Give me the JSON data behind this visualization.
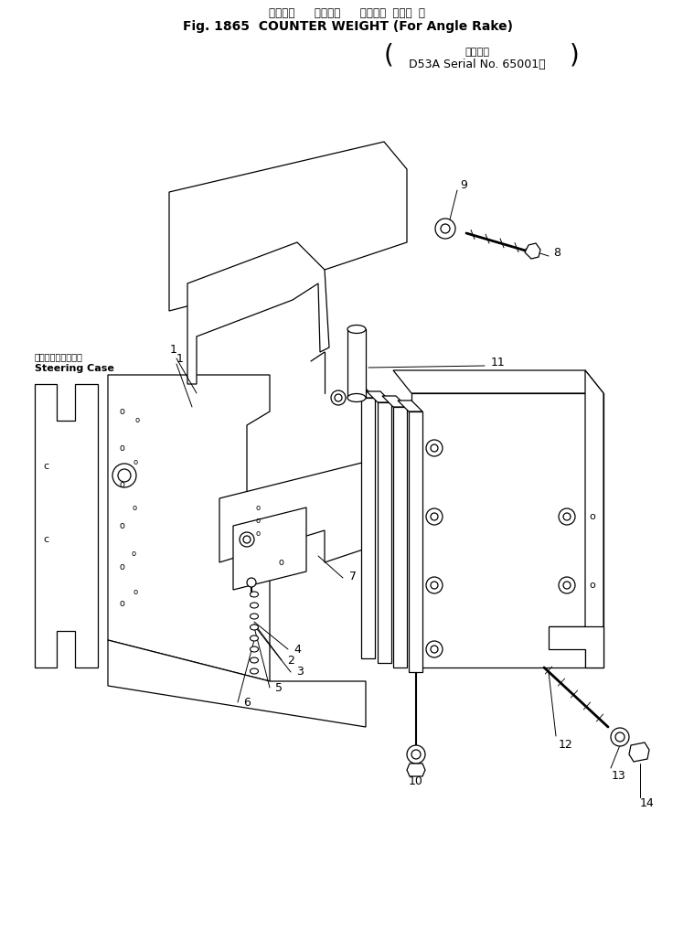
{
  "title_line1": "カウンタ   ヴェイト   アングル レーキ 用",
  "title_line2": "Fig. 1865  COUNTER WEIGHT (For Angle Rake)",
  "title_line3": "適用号機",
  "title_line4": "D53A Serial No. 65001～",
  "steering_label1": "ステアリングケース",
  "steering_label2": "Steering Case",
  "bg_color": "#ffffff",
  "lc": "#000000"
}
